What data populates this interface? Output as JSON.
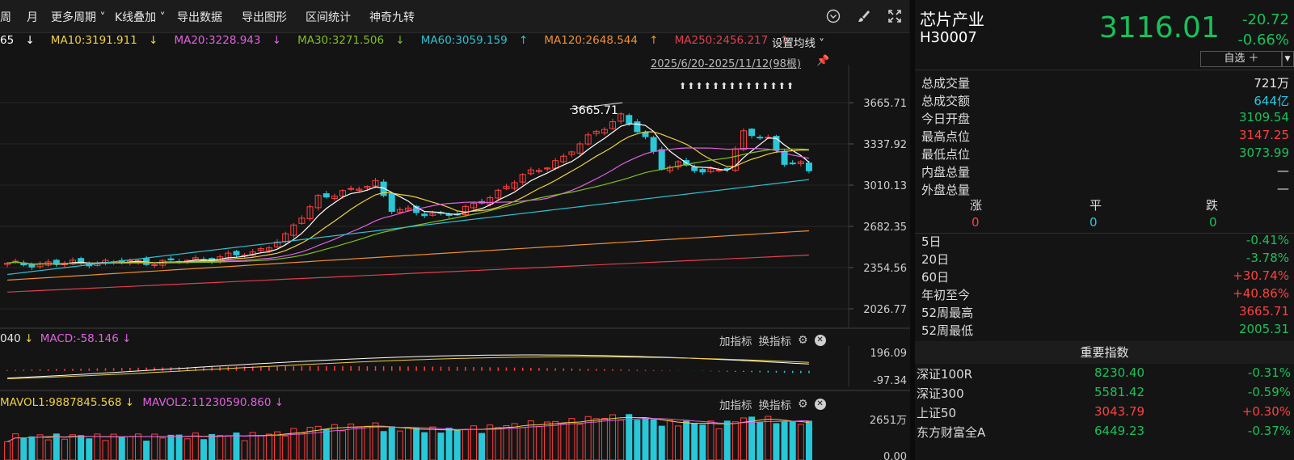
{
  "toolbar": {
    "items": [
      "周",
      "月",
      "更多周期",
      "K线叠加",
      "导出数据",
      "导出图形",
      "区间统计",
      "神奇九转"
    ]
  },
  "ma_legend": {
    "ma5_tail": "65",
    "ma10": "MA10:3191.911",
    "ma20": "MA20:3228.943",
    "ma30": "MA30:3271.506",
    "ma60": "MA60:3059.159",
    "ma120": "MA120:2648.544",
    "ma250": "MA250:2456.217",
    "arrows": {
      "ma5": "↓",
      "ma10": "↓",
      "ma20": "↓",
      "ma30": "↓",
      "ma60": "↑",
      "ma120": "↑",
      "ma250": "↑"
    },
    "setting_label": "设置均线"
  },
  "date_range": "2025/6/20-2025/11/12(98根)",
  "main_chart": {
    "y_ticks": [
      "3665.71",
      "3337.92",
      "3010.13",
      "2682.35",
      "2354.56",
      "2026.77"
    ],
    "peak_label": "3665.71",
    "up_arrows": "⬆⬆⬆⬆⬆⬆⬆⬆⬆⬆⬆⬆⬆⬆"
  },
  "macd_panel": {
    "legend_head": "040",
    "legend_arrow1": "↓",
    "macd": "MACD:-58.146",
    "legend_arrow2": "↓",
    "add_indicator": "加指标",
    "switch_indicator": "换指标",
    "y_ticks": [
      "196.09",
      "-97.34"
    ]
  },
  "vol_panel": {
    "mavol1": "MAVOL1:9887845.568",
    "arrow1": "↓",
    "mavol2": "MAVOL2:11230590.860",
    "arrow2": "↓",
    "add_indicator": "加指标",
    "switch_indicator": "换指标",
    "y_ticks": [
      "2651万",
      "0.00"
    ]
  },
  "quote": {
    "name": "芯片产业",
    "code": "H30007",
    "price": "3116.01",
    "change": "-20.72",
    "change_pct": "-0.66%",
    "watch_button": "自选 ＋",
    "watch_dropdown": "▼"
  },
  "stats": [
    {
      "k": "总成交量",
      "v": "721万",
      "c": "white"
    },
    {
      "k": "总成交额",
      "v": "644亿",
      "c": "blue"
    },
    {
      "k": "今日开盘",
      "v": "3109.54",
      "c": "green"
    },
    {
      "k": "最高点位",
      "v": "3147.25",
      "c": "red"
    },
    {
      "k": "最低点位",
      "v": "3073.99",
      "c": "green"
    },
    {
      "k": "内盘总量",
      "v": "—",
      "c": "white"
    },
    {
      "k": "外盘总量",
      "v": "—",
      "c": "white"
    }
  ],
  "breadth": {
    "labels": [
      "涨",
      "平",
      "跌"
    ],
    "values": [
      "0",
      "0",
      "0"
    ]
  },
  "periods": [
    {
      "k": "5日",
      "v": "-0.41%",
      "c": "green"
    },
    {
      "k": "20日",
      "v": "-3.78%",
      "c": "green"
    },
    {
      "k": "60日",
      "v": "+30.74%",
      "c": "red"
    },
    {
      "k": "年初至今",
      "v": "+40.86%",
      "c": "red"
    },
    {
      "k": "52周最高",
      "v": "3665.71",
      "c": "red"
    },
    {
      "k": "52周最低",
      "v": "2005.31",
      "c": "green"
    }
  ],
  "indices_header": "重要指数",
  "indices": [
    {
      "name": "深证100R",
      "value": "8230.40",
      "chg": "-0.31%",
      "c": "green"
    },
    {
      "name": "深证300",
      "value": "5581.42",
      "chg": "-0.59%",
      "c": "green"
    },
    {
      "name": "上证50",
      "value": "3043.79",
      "chg": "+0.30%",
      "c": "red"
    },
    {
      "name": "东方财富全A",
      "value": "6449.23",
      "chg": "-0.37%",
      "c": "green"
    }
  ],
  "colors": {
    "up": "#ff4040",
    "down": "#28c8d8",
    "ma5": "#ffffff",
    "ma10": "#f0d040",
    "ma20": "#e060e0",
    "ma30": "#80c020",
    "ma60": "#30c0d0",
    "ma120": "#f09030",
    "ma250": "#e04050"
  }
}
